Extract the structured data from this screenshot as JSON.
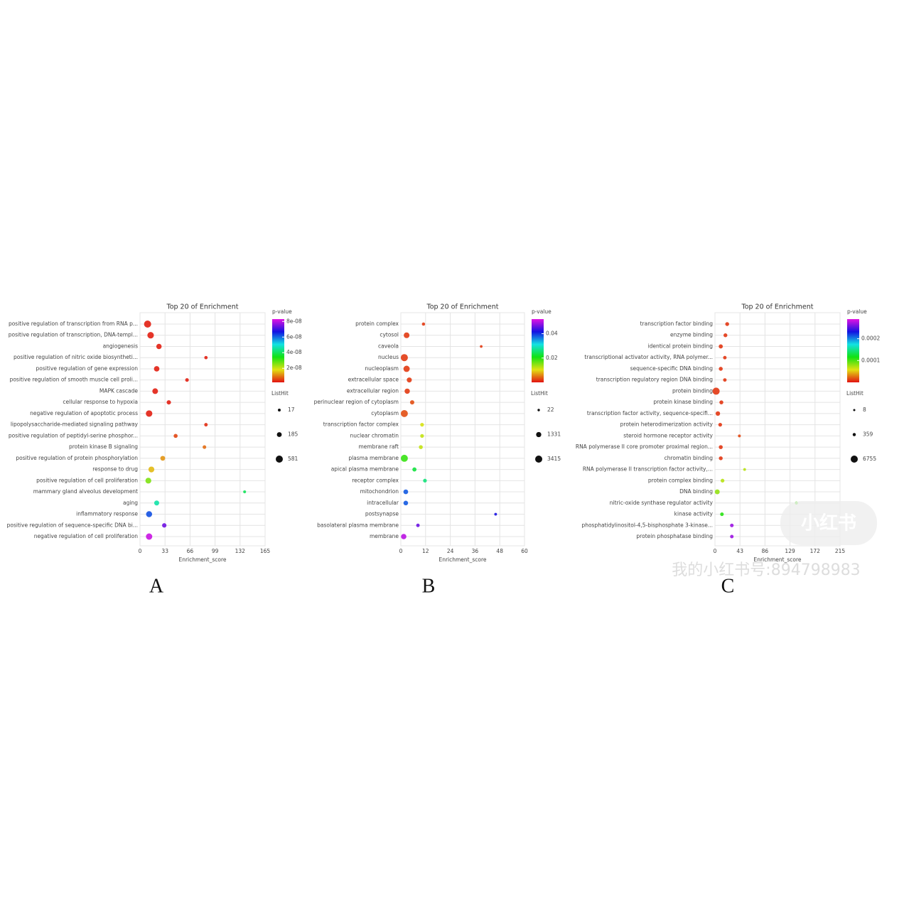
{
  "chart_data": [
    {
      "type": "bubble",
      "panel_label": "A",
      "title": "Top 20 of  Enrichment",
      "xlabel": "Enrichment_score",
      "categories": [
        "positive regulation of transcription from RNA p...",
        "positive regulation of transcription, DNA-templ...",
        "angiogenesis",
        "positive regulation of nitric oxide biosyntheti...",
        "positive regulation of gene expression",
        "positive regulation of smooth muscle cell proli...",
        "MAPK cascade",
        "cellular response to hypoxia",
        "negative regulation of apoptotic process",
        "lipopolysaccharide-mediated signaling pathway",
        "positive regulation of peptidyl-serine phosphor...",
        "protein kinase B signaling",
        "positive regulation of protein phosphorylation",
        "response to drug",
        "positive regulation of cell proliferation",
        "mammary gland alveolus development",
        "aging",
        "inflammatory response",
        "positive regulation of sequence-specific DNA bi...",
        "negative regulation of cell proliferation"
      ],
      "values": [
        10,
        14,
        25,
        87,
        22,
        62,
        20,
        38,
        12,
        87,
        47,
        85,
        30,
        15,
        11,
        138,
        22,
        12,
        32,
        12
      ],
      "sizes": [
        581,
        450,
        250,
        40,
        270,
        60,
        300,
        120,
        450,
        50,
        90,
        60,
        180,
        330,
        330,
        17,
        200,
        360,
        130,
        420
      ],
      "pvalues": [
        3e-09,
        3e-09,
        3e-09,
        3e-09,
        3e-09,
        3e-09,
        3e-09,
        3e-09,
        3e-09,
        4e-09,
        6e-09,
        9e-09,
        1.2e-08,
        1.5e-08,
        2.6e-08,
        4e-08,
        4.6e-08,
        6.2e-08,
        7.4e-08,
        8.1e-08
      ],
      "xlim": [
        0,
        165
      ],
      "xticks": [
        0,
        33,
        66,
        99,
        132,
        165
      ],
      "grid": true,
      "color_scale": {
        "title": "p-value",
        "lim": [
          2e-09,
          8.3e-08
        ],
        "ticks": [
          {
            "value": 2e-08,
            "label": "2e-08"
          },
          {
            "value": 4e-08,
            "label": "4e-08"
          },
          {
            "value": 6e-08,
            "label": "6e-08"
          },
          {
            "value": 8e-08,
            "label": "8e-08"
          }
        ]
      },
      "size_legend": {
        "title": "ListHit",
        "values": [
          17,
          185,
          581
        ]
      }
    },
    {
      "type": "bubble",
      "panel_label": "B",
      "title": "Top 20 of  Enrichment",
      "xlabel": "Enrichment_score",
      "categories": [
        "protein complex",
        "cytosol",
        "caveola",
        "nucleus",
        "nucleoplasm",
        "extracellular space",
        "extracellular region",
        "perinuclear region of cytoplasm",
        "cytoplasm",
        "transcription factor complex",
        "nuclear chromatin",
        "membrane raft",
        "plasma membrane",
        "apical plasma membrane",
        "receptor complex",
        "mitochondrion",
        "intracellular",
        "postsynapse",
        "basolateral plasma membrane",
        "membrane"
      ],
      "values": [
        11,
        2.8,
        39,
        1.7,
        2.8,
        4.1,
        3.1,
        5.5,
        1.7,
        10.3,
        10.3,
        9.7,
        1.7,
        6.6,
        11.7,
        2.4,
        2.4,
        46,
        8.3,
        1.4
      ],
      "sizes": [
        200,
        1800,
        60,
        3415,
        2400,
        1200,
        1400,
        700,
        3300,
        400,
        400,
        500,
        3300,
        600,
        400,
        1000,
        900,
        80,
        300,
        1500
      ],
      "pvalues": [
        0.002,
        0.002,
        0.002,
        0.002,
        0.002,
        0.002,
        0.002,
        0.003,
        0.003,
        0.011,
        0.012,
        0.012,
        0.019,
        0.023,
        0.026,
        0.038,
        0.038,
        0.042,
        0.046,
        0.05
      ],
      "xlim": [
        0,
        60
      ],
      "xticks": [
        0,
        12,
        24,
        36,
        48,
        60
      ],
      "grid": true,
      "color_scale": {
        "title": "p-value",
        "lim": [
          0,
          0.052
        ],
        "ticks": [
          0.02,
          0.04
        ]
      },
      "size_legend": {
        "title": "ListHit",
        "values": [
          22,
          1331,
          3415
        ]
      }
    },
    {
      "type": "bubble",
      "panel_label": "C",
      "title": "Top 20 of  Enrichment",
      "xlabel": "Enrichment_score",
      "categories": [
        "transcription factor binding",
        "enzyme binding",
        "identical protein binding",
        "transcriptional activator activity, RNA polymer...",
        "sequence-specific DNA binding",
        "transcription regulatory region DNA binding",
        "protein binding",
        "protein kinase binding",
        "transcription factor activity, sequence-specifi...",
        "protein heterodimerization activity",
        "steroid hormone receptor activity",
        "RNA polymerase II core promoter proximal region...",
        "chromatin binding",
        "RNA polymerase II transcription factor activity,...",
        "protein complex binding",
        "DNA binding",
        "nitric-oxide synthase regulator activity",
        "kinase activity",
        "phosphatidylinositol-4,5-bisphosphate 3-kinase...",
        "protein phosphatase binding"
      ],
      "values": [
        21,
        18,
        10,
        17,
        10,
        17,
        2,
        11,
        5,
        9,
        42,
        10,
        10,
        51,
        13,
        4,
        140,
        12,
        29,
        29
      ],
      "sizes": [
        900,
        900,
        1200,
        600,
        1000,
        600,
        6755,
        1000,
        1600,
        800,
        200,
        1000,
        900,
        150,
        800,
        2200,
        300,
        700,
        700,
        600
      ],
      "pvalues": [
        1e-05,
        1e-05,
        1e-05,
        1e-05,
        1e-05,
        1e-05,
        1e-05,
        1e-05,
        1e-05,
        1e-05,
        1.5e-05,
        1e-05,
        1e-05,
        7e-05,
        7e-05,
        8e-05,
        0.0001,
        0.00011,
        0.00027,
        0.00027
      ],
      "xlim": [
        0,
        215
      ],
      "xticks": [
        0,
        43,
        86,
        129,
        172,
        215
      ],
      "grid": true,
      "color_scale": {
        "title": "p-value",
        "lim": [
          0,
          0.00029
        ],
        "ticks": [
          0.0001,
          0.0002
        ]
      },
      "size_legend": {
        "title": "ListHit",
        "values": [
          8,
          359,
          6755
        ]
      }
    }
  ],
  "watermark": [
    "小红书",
    "我的小红书号:894798983"
  ]
}
